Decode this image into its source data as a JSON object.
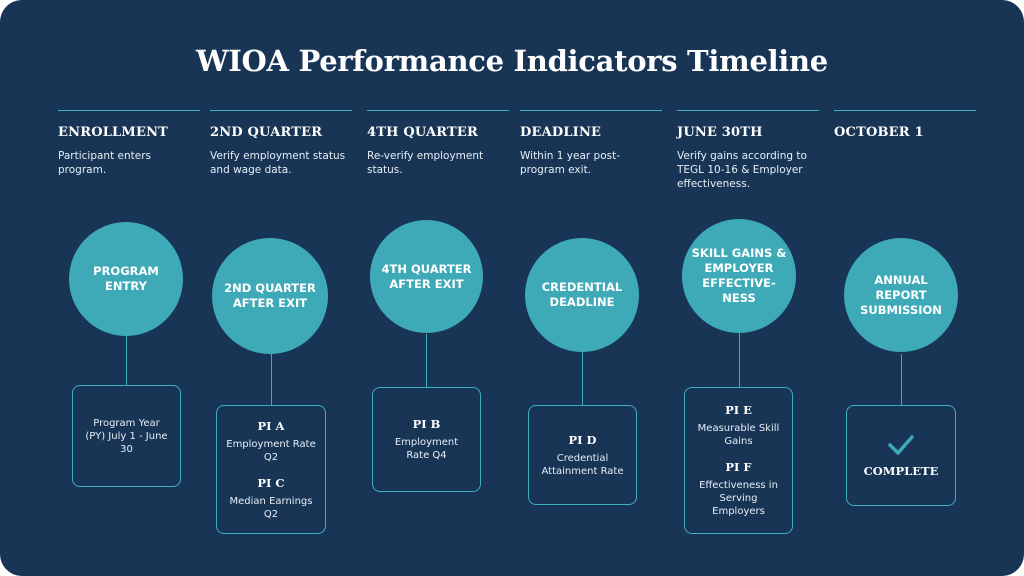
{
  "title": "WIOA Performance Indicators Timeline",
  "columns": [
    {
      "heading": "ENROLLMENT",
      "description": "Participant enters program.",
      "milestone": "PROGRAM ENTRY",
      "box_text": "Program Year (PY) July 1 - June 30"
    },
    {
      "heading": "2ND QUARTER",
      "description": "Verify employment status and wage data.",
      "milestone": "2ND QUARTER AFTER EXIT",
      "indicators": [
        {
          "label": "PI A",
          "text": "Employment Rate Q2"
        },
        {
          "label": "PI C",
          "text": "Median Earnings Q2"
        }
      ]
    },
    {
      "heading": "4TH QUARTER",
      "description": "Re-verify employment status.",
      "milestone": "4TH QUARTER AFTER EXIT",
      "indicators": [
        {
          "label": "PI B",
          "text": "Employment Rate Q4"
        }
      ]
    },
    {
      "heading": "DEADLINE",
      "description": "Within 1 year post-program exit.",
      "milestone": "CREDENTIAL DEADLINE",
      "indicators": [
        {
          "label": "PI D",
          "text": "Credential Attainment Rate"
        }
      ]
    },
    {
      "heading": "JUNE 30TH",
      "description": "Verify gains according to TEGL 10-16 & Employer effectiveness.",
      "milestone": "SKILL GAINS & EMPLOYER EFFECTIVE-NESS",
      "indicators": [
        {
          "label": "PI E",
          "text": "Measurable Skill Gains"
        },
        {
          "label": "PI F",
          "text": "Effectiveness in Serving Employers"
        }
      ]
    },
    {
      "heading": "OCTOBER 1",
      "description": "",
      "milestone": "ANNUAL REPORT SUBMISSION",
      "box_text": "COMPLETE",
      "box_icon": "checkmark-icon"
    }
  ],
  "colors": {
    "background": "#183556",
    "accent": "#3eaab8"
  }
}
